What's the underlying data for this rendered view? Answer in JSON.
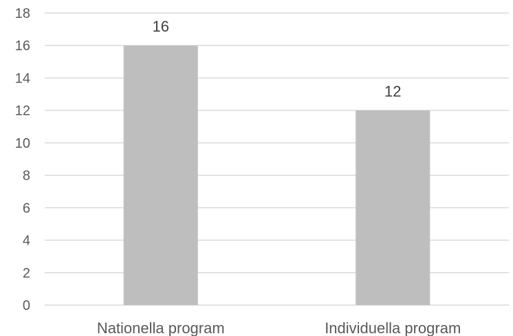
{
  "chart_data": {
    "type": "bar",
    "categories": [
      "Nationella program",
      "Individuella program"
    ],
    "values": [
      16,
      12
    ],
    "data_labels": [
      "16",
      "12"
    ],
    "title": "",
    "xlabel": "",
    "ylabel": "",
    "ylim": [
      0,
      18
    ],
    "yticks": [
      "0",
      "2",
      "4",
      "6",
      "8",
      "10",
      "12",
      "14",
      "16",
      "18"
    ],
    "grid": true,
    "legend": "none",
    "bar_color": "#BFBEBE",
    "grid_color": "#D9D9D9",
    "text_color": "#595959"
  }
}
